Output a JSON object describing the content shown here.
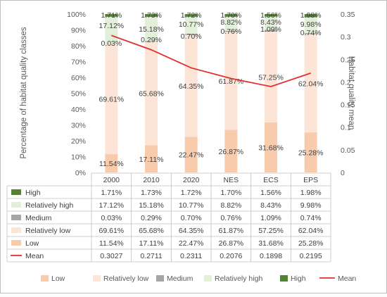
{
  "chart_data": {
    "type": "bar",
    "stacked": true,
    "categories": [
      "2000",
      "2010",
      "2020",
      "NES",
      "ECS",
      "EPS"
    ],
    "ylabel": "Percentage of habitat quality classes",
    "y2label": "Habitat quality  mean",
    "ylim": [
      0,
      100
    ],
    "y2lim": [
      0,
      0.35
    ],
    "yticks": [
      "0%",
      "10%",
      "20%",
      "30%",
      "40%",
      "50%",
      "60%",
      "70%",
      "80%",
      "90%",
      "100%"
    ],
    "y2ticks": [
      "0",
      "0.05",
      "0.1",
      "0.15",
      "0.2",
      "0.25",
      "0.3",
      "0.35"
    ],
    "series": [
      {
        "name": "Low",
        "kind": "bar",
        "color": "#f8cbad",
        "values": [
          11.54,
          17.11,
          22.47,
          26.87,
          31.68,
          25.28
        ],
        "labels": [
          "11.54%",
          "17.11%",
          "22.47%",
          "26.87%",
          "31.68%",
          "25.28%"
        ]
      },
      {
        "name": "Relatively low",
        "kind": "bar",
        "color": "#fce4d6",
        "values": [
          69.61,
          65.68,
          64.35,
          61.87,
          57.25,
          62.04
        ],
        "labels": [
          "69.61%",
          "65.68%",
          "64.35%",
          "61.87%",
          "57.25%",
          "62.04%"
        ]
      },
      {
        "name": "Medium",
        "kind": "bar",
        "color": "#a6a6a6",
        "values": [
          0.03,
          0.29,
          0.7,
          0.76,
          1.09,
          0.74
        ],
        "labels": [
          "0.03%",
          "0.29%",
          "0.70%",
          "0.76%",
          "1.09%",
          "0.74%"
        ]
      },
      {
        "name": "Relatively high",
        "kind": "bar",
        "color": "#e2f0d9",
        "values": [
          17.12,
          15.18,
          10.77,
          8.82,
          8.43,
          9.98
        ],
        "labels": [
          "17.12%",
          "15.18%",
          "10.77%",
          "8.82%",
          "8.43%",
          "9.98%"
        ]
      },
      {
        "name": "High",
        "kind": "bar",
        "color": "#548235",
        "values": [
          1.71,
          1.73,
          1.72,
          1.7,
          1.56,
          1.98
        ],
        "labels": [
          "1.71%",
          "1.73%",
          "1.72%",
          "1.70%",
          "1.56%",
          "1.98%"
        ]
      },
      {
        "name": "Mean",
        "kind": "line",
        "axis": "y2",
        "color": "#e03030",
        "values": [
          0.3027,
          0.2711,
          0.2311,
          0.2076,
          0.1898,
          0.2195
        ],
        "labels": [
          "0.3027",
          "0.2711",
          "0.2311",
          "0.2076",
          "0.1898",
          "0.2195"
        ]
      }
    ],
    "table_order": [
      "High",
      "Relatively high",
      "Medium",
      "Relatively low",
      "Low",
      "Mean"
    ],
    "legend_order": [
      "Low",
      "Relatively low",
      "Medium",
      "Relatively high",
      "High",
      "Mean"
    ],
    "legend_position": "bottom"
  }
}
